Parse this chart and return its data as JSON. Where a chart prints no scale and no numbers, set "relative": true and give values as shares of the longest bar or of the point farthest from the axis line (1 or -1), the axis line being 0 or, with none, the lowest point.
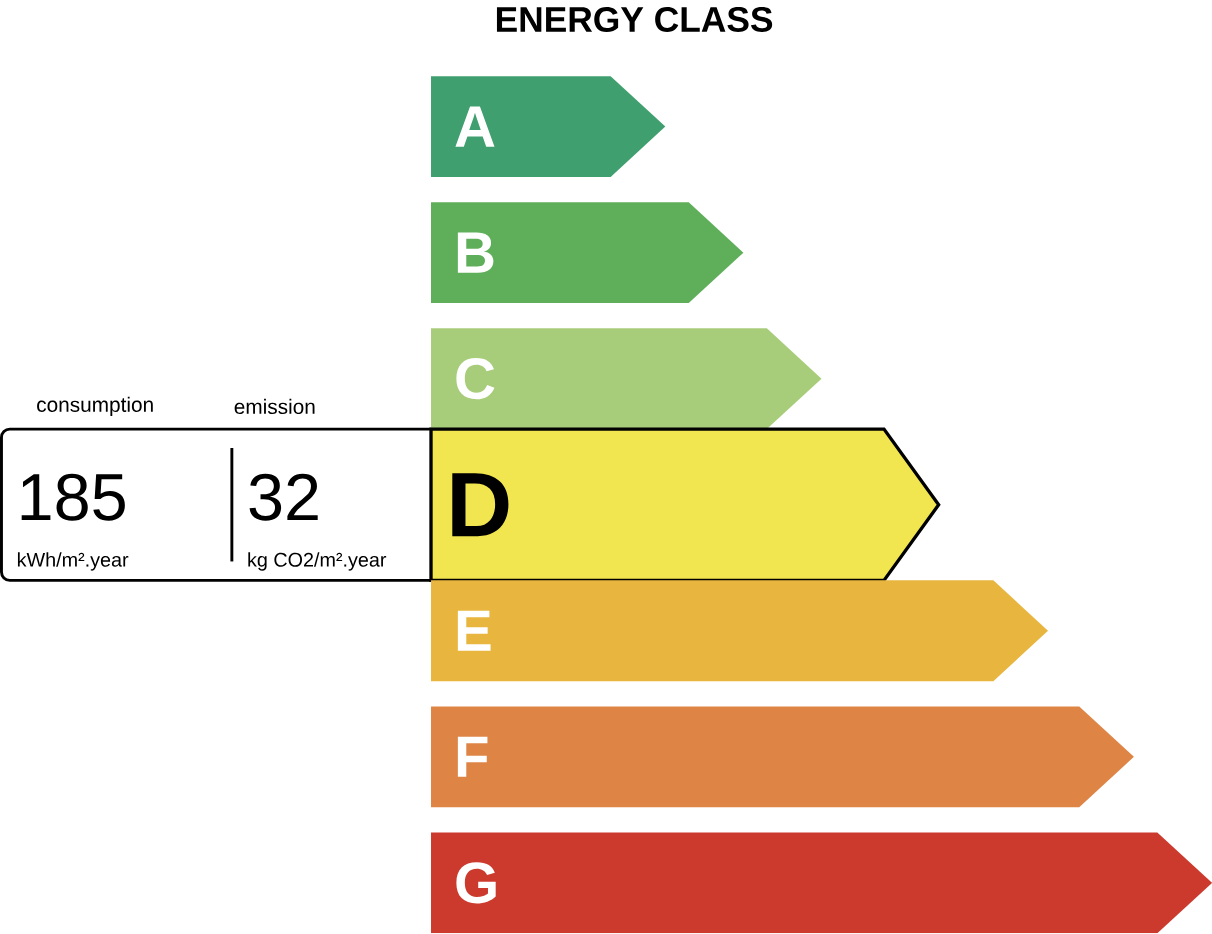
{
  "chart_data": {
    "type": "bar",
    "orientation": "horizontal",
    "relative": true,
    "title": "ENERGY CLASS",
    "categories": [
      "A",
      "B",
      "C",
      "D",
      "E",
      "F",
      "G"
    ],
    "values": [
      0.3,
      0.4,
      0.5,
      0.65,
      0.79,
      0.9,
      1
    ],
    "colors": [
      "#3f9f6e",
      "#5fae5a",
      "#a8cd7a",
      "#f2e650",
      "#e8b63f",
      "#de8445",
      "#cc3a2e"
    ],
    "needle": "D",
    "annotations": [
      "consumption",
      "emission",
      "185",
      "32",
      "kWh/m².year",
      "kg CO2/m².year"
    ]
  }
}
